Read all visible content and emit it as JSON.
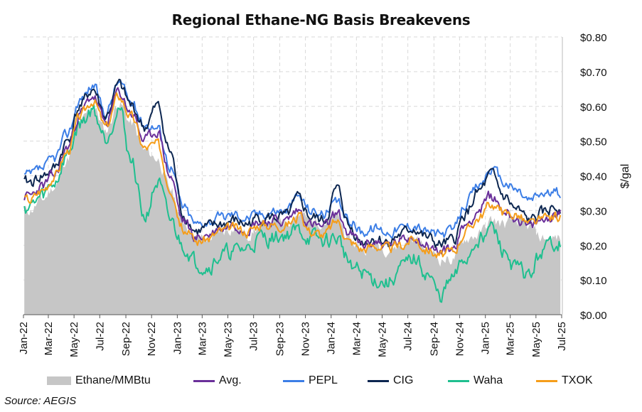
{
  "chart_data": {
    "type": "line",
    "title": "Regional Ethane-NG Basis Breakevens",
    "ylabel": "$/gal",
    "xlabel": "",
    "ylim": [
      0,
      0.8
    ],
    "xlim": [
      "2022-01-01",
      "2025-07-01"
    ],
    "y_ticks": [
      "$0.00",
      "$0.10",
      "$0.20",
      "$0.30",
      "$0.40",
      "$0.50",
      "$0.60",
      "$0.70",
      "$0.80"
    ],
    "y_tick_values": [
      0,
      0.1,
      0.2,
      0.3,
      0.4,
      0.5,
      0.6,
      0.7,
      0.8
    ],
    "x_ticks": [
      "Jan-22",
      "Mar-22",
      "May-22",
      "Jul-22",
      "Sep-22",
      "Nov-22",
      "Jan-23",
      "Mar-23",
      "May-23",
      "Jul-23",
      "Sep-23",
      "Nov-23",
      "Jan-24",
      "Mar-24",
      "May-24",
      "Jul-24",
      "Sep-24",
      "Nov-24",
      "Jan-25",
      "Mar-25",
      "May-25",
      "Jul-25"
    ],
    "months": [
      "2022-01",
      "2022-02",
      "2022-03",
      "2022-04",
      "2022-05",
      "2022-06",
      "2022-07",
      "2022-08",
      "2022-09",
      "2022-10",
      "2022-11",
      "2022-12",
      "2023-01",
      "2023-02",
      "2023-03",
      "2023-04",
      "2023-05",
      "2023-06",
      "2023-07",
      "2023-08",
      "2023-09",
      "2023-10",
      "2023-11",
      "2023-12",
      "2024-01",
      "2024-02",
      "2024-03",
      "2024-04",
      "2024-05",
      "2024-06",
      "2024-07",
      "2024-08",
      "2024-09",
      "2024-10",
      "2024-11",
      "2024-12",
      "2025-01",
      "2025-02",
      "2025-03",
      "2025-04",
      "2025-05",
      "2025-06"
    ],
    "series": [
      {
        "name": "Ethane/MMBtu",
        "kind": "area",
        "color": "#c6c6c6",
        "values": [
          0.3,
          0.33,
          0.37,
          0.45,
          0.55,
          0.6,
          0.53,
          0.61,
          0.55,
          0.47,
          0.45,
          0.36,
          0.27,
          0.22,
          0.22,
          0.24,
          0.25,
          0.23,
          0.25,
          0.27,
          0.27,
          0.29,
          0.27,
          0.27,
          0.28,
          0.21,
          0.19,
          0.2,
          0.19,
          0.2,
          0.22,
          0.19,
          0.16,
          0.16,
          0.22,
          0.23,
          0.27,
          0.26,
          0.27,
          0.25,
          0.22,
          0.22
        ]
      },
      {
        "name": "Avg.",
        "kind": "line",
        "color": "#6a2f9a",
        "values": [
          0.34,
          0.37,
          0.4,
          0.48,
          0.58,
          0.63,
          0.55,
          0.64,
          0.58,
          0.5,
          0.53,
          0.4,
          0.27,
          0.22,
          0.23,
          0.25,
          0.26,
          0.25,
          0.27,
          0.27,
          0.27,
          0.3,
          0.26,
          0.25,
          0.29,
          0.23,
          0.2,
          0.21,
          0.2,
          0.21,
          0.23,
          0.2,
          0.18,
          0.19,
          0.26,
          0.3,
          0.34,
          0.3,
          0.28,
          0.25,
          0.27,
          0.29
        ]
      },
      {
        "name": "PEPL",
        "kind": "line",
        "color": "#3c7ee6",
        "values": [
          0.4,
          0.42,
          0.45,
          0.52,
          0.62,
          0.66,
          0.58,
          0.67,
          0.61,
          0.55,
          0.54,
          0.43,
          0.31,
          0.26,
          0.27,
          0.28,
          0.29,
          0.28,
          0.29,
          0.3,
          0.3,
          0.34,
          0.3,
          0.29,
          0.32,
          0.27,
          0.24,
          0.25,
          0.24,
          0.25,
          0.26,
          0.24,
          0.23,
          0.24,
          0.32,
          0.37,
          0.42,
          0.38,
          0.36,
          0.33,
          0.35,
          0.35
        ]
      },
      {
        "name": "CIG",
        "kind": "line",
        "color": "#0c2650",
        "values": [
          0.38,
          0.4,
          0.42,
          0.5,
          0.6,
          0.65,
          0.57,
          0.66,
          0.6,
          0.54,
          0.6,
          0.47,
          0.29,
          0.24,
          0.25,
          0.26,
          0.27,
          0.26,
          0.28,
          0.28,
          0.28,
          0.33,
          0.28,
          0.27,
          0.36,
          0.25,
          0.21,
          0.22,
          0.21,
          0.23,
          0.25,
          0.22,
          0.2,
          0.21,
          0.29,
          0.35,
          0.4,
          0.34,
          0.3,
          0.27,
          0.29,
          0.31
        ]
      },
      {
        "name": "Waha",
        "kind": "line",
        "color": "#1fbf8f",
        "values": [
          0.31,
          0.34,
          0.38,
          0.46,
          0.55,
          0.59,
          0.51,
          0.6,
          0.44,
          0.28,
          0.38,
          0.27,
          0.2,
          0.15,
          0.14,
          0.17,
          0.18,
          0.19,
          0.22,
          0.22,
          0.23,
          0.24,
          0.22,
          0.21,
          0.22,
          0.15,
          0.12,
          0.1,
          0.09,
          0.13,
          0.16,
          0.12,
          0.05,
          0.1,
          0.16,
          0.22,
          0.25,
          0.18,
          0.13,
          0.11,
          0.18,
          0.21
        ]
      },
      {
        "name": "TXOK",
        "kind": "line",
        "color": "#f59d1a",
        "values": [
          0.33,
          0.36,
          0.4,
          0.47,
          0.57,
          0.62,
          0.54,
          0.63,
          0.57,
          0.48,
          0.49,
          0.37,
          0.25,
          0.21,
          0.22,
          0.24,
          0.25,
          0.24,
          0.26,
          0.26,
          0.26,
          0.28,
          0.24,
          0.23,
          0.27,
          0.21,
          0.19,
          0.2,
          0.19,
          0.2,
          0.22,
          0.19,
          0.17,
          0.18,
          0.24,
          0.28,
          0.32,
          0.29,
          0.29,
          0.26,
          0.27,
          0.28
        ]
      }
    ],
    "legend_position": "bottom",
    "grid": true
  },
  "source": "Source: AEGIS"
}
